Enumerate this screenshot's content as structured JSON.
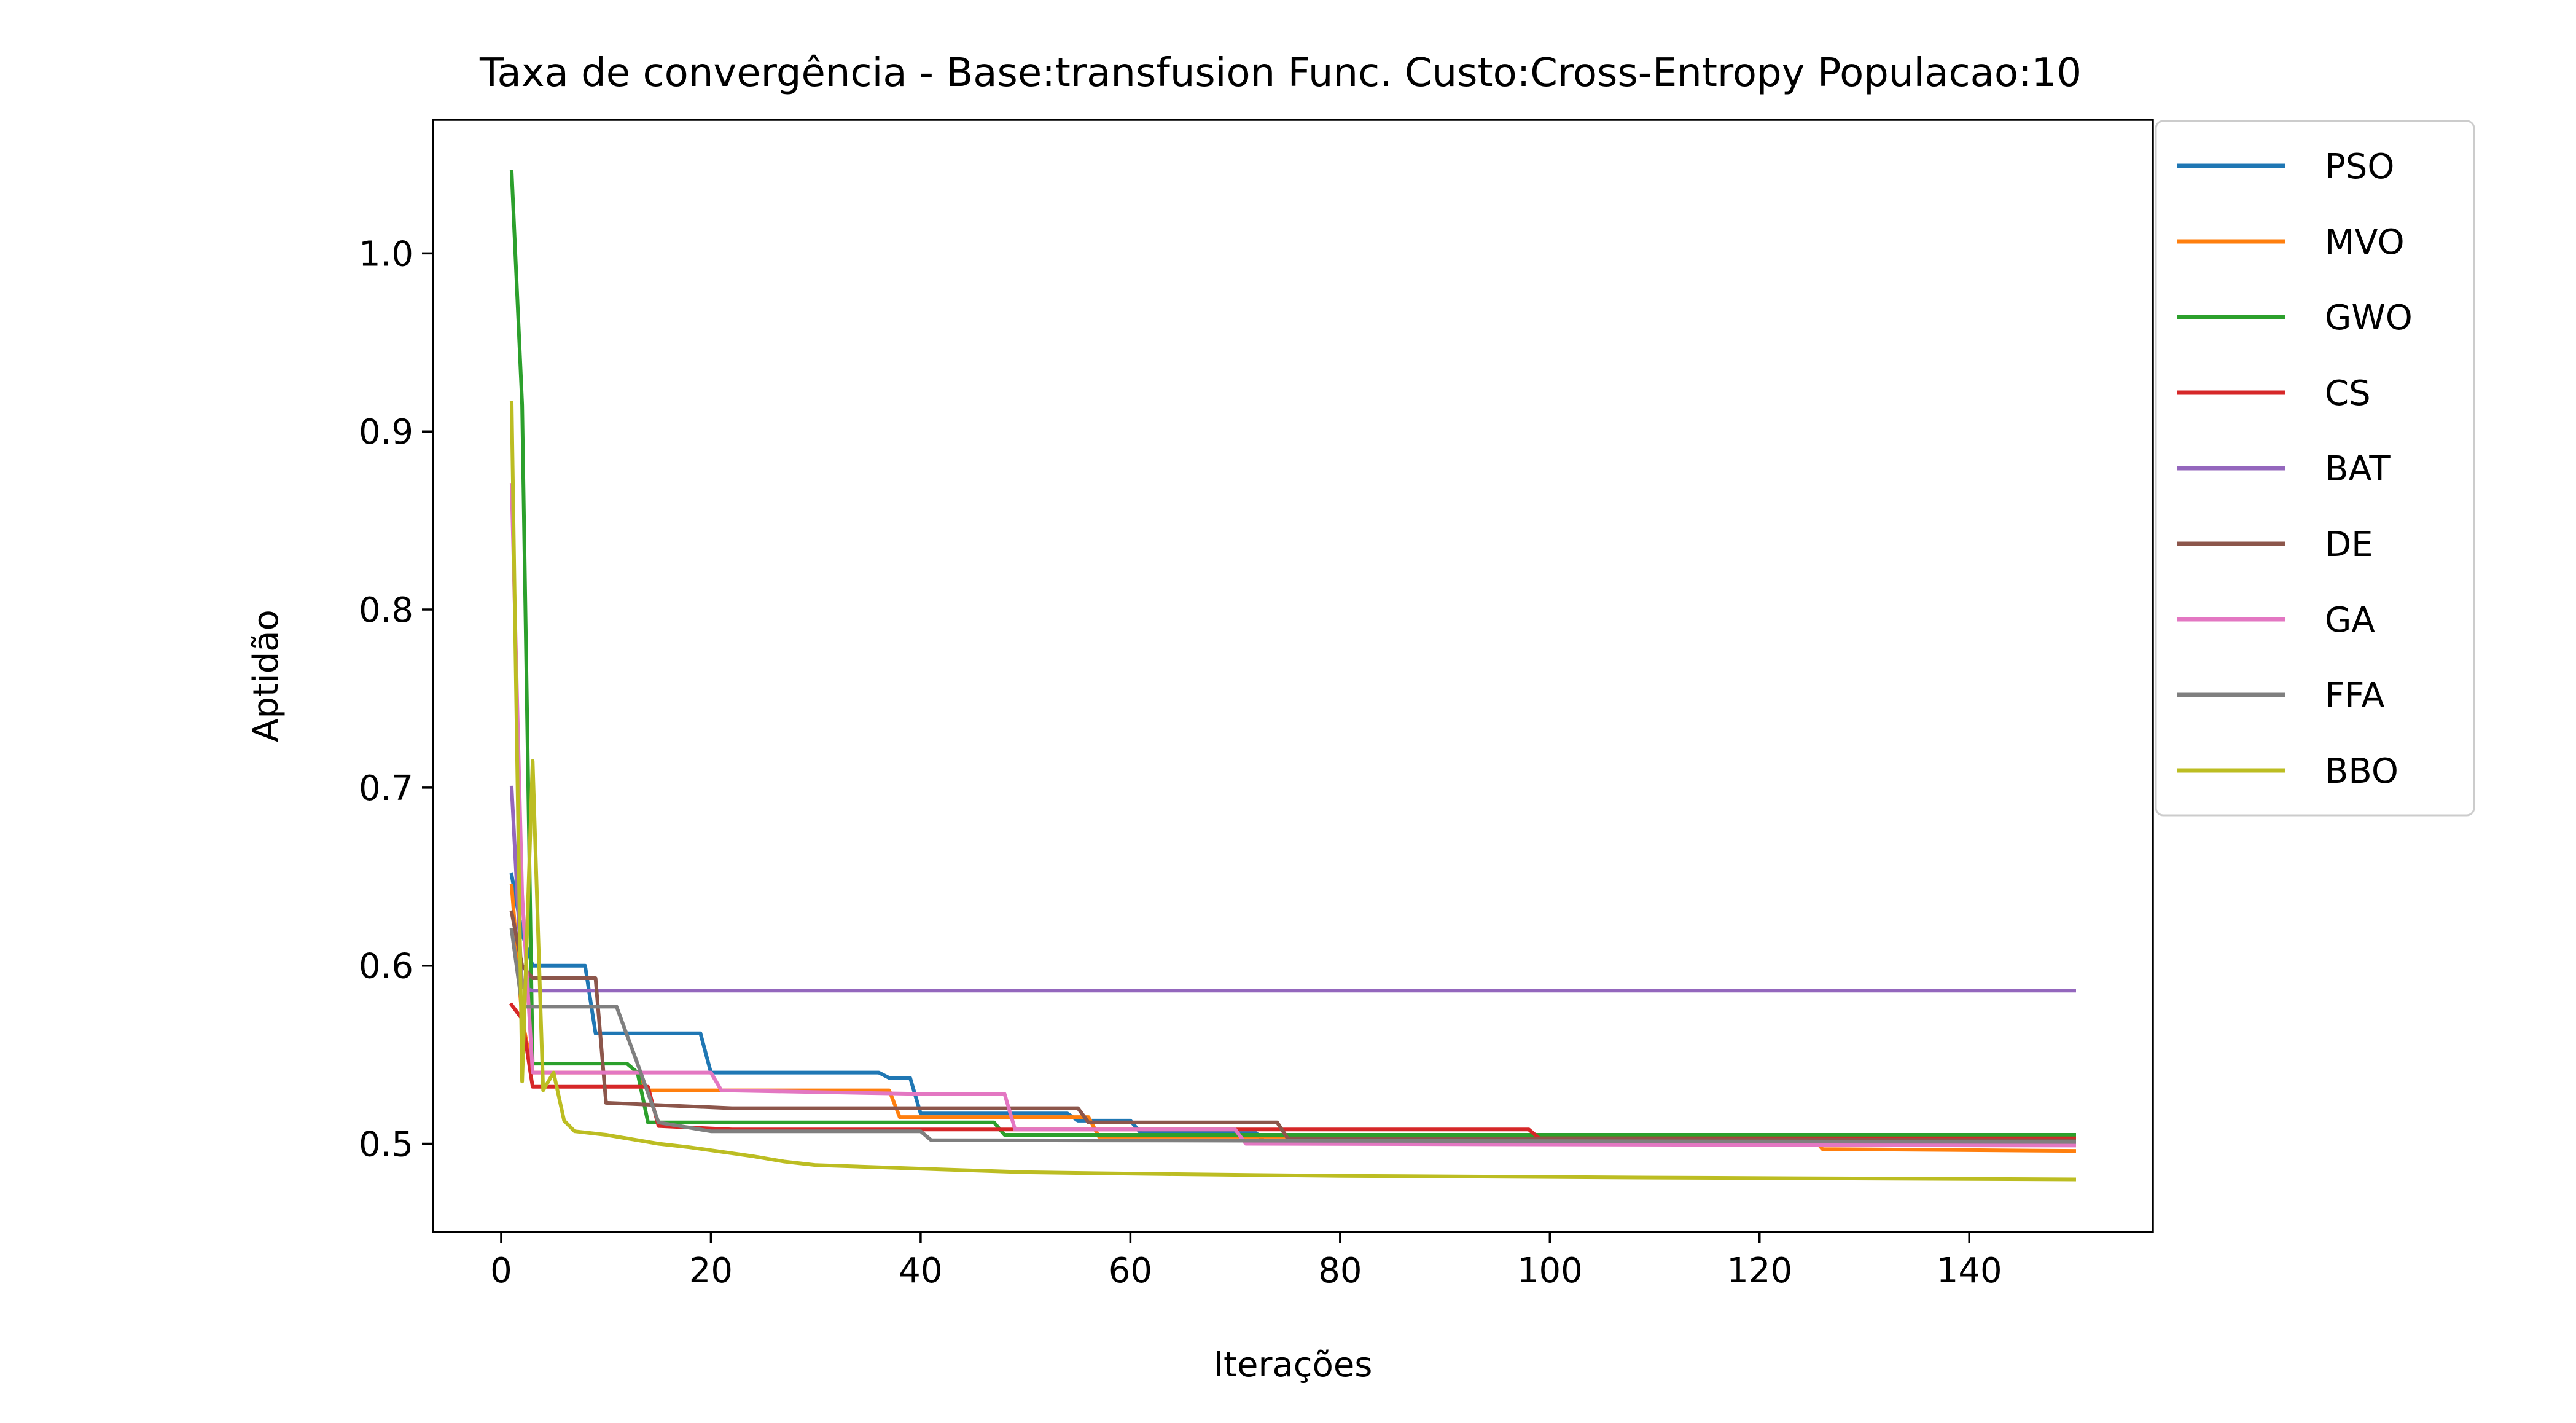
{
  "chart_data": {
    "type": "line",
    "title": "Taxa de convergência - Base:transfusion Func. Custo:Cross-Entropy Populacao:10",
    "xlabel": "Iterações",
    "ylabel": "Aptidão",
    "xlim": [
      -6.5,
      157.5
    ],
    "ylim": [
      0.4505,
      1.075
    ],
    "xticks": [
      0,
      20,
      40,
      60,
      80,
      100,
      120,
      140
    ],
    "yticks": [
      0.5,
      0.6,
      0.7,
      0.8,
      0.9,
      1.0
    ],
    "xtick_labels": [
      "0",
      "20",
      "40",
      "60",
      "80",
      "100",
      "120",
      "140"
    ],
    "ytick_labels": [
      "0.5",
      "0.6",
      "0.7",
      "0.8",
      "0.9",
      "1.0"
    ],
    "grid": false,
    "legend_position": "outside-right-top",
    "series": [
      {
        "name": "PSO",
        "color": "#1f77b4",
        "points": [
          [
            1,
            0.651
          ],
          [
            2,
            0.618
          ],
          [
            3,
            0.6
          ],
          [
            8,
            0.6
          ],
          [
            9,
            0.562
          ],
          [
            19,
            0.562
          ],
          [
            20,
            0.54
          ],
          [
            36,
            0.54
          ],
          [
            37,
            0.537
          ],
          [
            39,
            0.537
          ],
          [
            40,
            0.517
          ],
          [
            54,
            0.517
          ],
          [
            55,
            0.513
          ],
          [
            60,
            0.513
          ],
          [
            61,
            0.506
          ],
          [
            72,
            0.506
          ],
          [
            73,
            0.5
          ],
          [
            150,
            0.5
          ]
        ]
      },
      {
        "name": "MVO",
        "color": "#ff7f0e",
        "points": [
          [
            1,
            0.645
          ],
          [
            2,
            0.57
          ],
          [
            3,
            0.54
          ],
          [
            13,
            0.54
          ],
          [
            14,
            0.53
          ],
          [
            37,
            0.53
          ],
          [
            38,
            0.515
          ],
          [
            56,
            0.515
          ],
          [
            57,
            0.504
          ],
          [
            125,
            0.504
          ],
          [
            126,
            0.497
          ],
          [
            150,
            0.496
          ]
        ]
      },
      {
        "name": "GWO",
        "color": "#2ca02c",
        "points": [
          [
            1,
            1.046
          ],
          [
            2,
            0.915
          ],
          [
            3,
            0.545
          ],
          [
            12,
            0.545
          ],
          [
            13,
            0.54
          ],
          [
            14,
            0.512
          ],
          [
            47,
            0.512
          ],
          [
            48,
            0.505
          ],
          [
            150,
            0.505
          ]
        ]
      },
      {
        "name": "CS",
        "color": "#d62728",
        "points": [
          [
            1,
            0.578
          ],
          [
            2,
            0.57
          ],
          [
            3,
            0.532
          ],
          [
            14,
            0.532
          ],
          [
            15,
            0.51
          ],
          [
            22,
            0.508
          ],
          [
            98,
            0.508
          ],
          [
            99,
            0.503
          ],
          [
            150,
            0.503
          ]
        ]
      },
      {
        "name": "BAT",
        "color": "#9467bd",
        "points": [
          [
            1,
            0.7
          ],
          [
            2,
            0.588
          ],
          [
            3,
            0.586
          ],
          [
            150,
            0.586
          ]
        ]
      },
      {
        "name": "DE",
        "color": "#8c564b",
        "points": [
          [
            1,
            0.63
          ],
          [
            2,
            0.6
          ],
          [
            3,
            0.593
          ],
          [
            9,
            0.593
          ],
          [
            10,
            0.523
          ],
          [
            22,
            0.52
          ],
          [
            55,
            0.52
          ],
          [
            56,
            0.512
          ],
          [
            74,
            0.512
          ],
          [
            75,
            0.503
          ],
          [
            150,
            0.502
          ]
        ]
      },
      {
        "name": "GA",
        "color": "#e377c2",
        "points": [
          [
            1,
            0.87
          ],
          [
            2,
            0.64
          ],
          [
            3,
            0.54
          ],
          [
            20,
            0.54
          ],
          [
            21,
            0.53
          ],
          [
            40,
            0.528
          ],
          [
            48,
            0.528
          ],
          [
            49,
            0.508
          ],
          [
            70,
            0.508
          ],
          [
            71,
            0.5
          ],
          [
            150,
            0.499
          ]
        ]
      },
      {
        "name": "FFA",
        "color": "#7f7f7f",
        "points": [
          [
            1,
            0.62
          ],
          [
            2,
            0.577
          ],
          [
            11,
            0.577
          ],
          [
            13,
            0.545
          ],
          [
            15,
            0.512
          ],
          [
            20,
            0.507
          ],
          [
            40,
            0.507
          ],
          [
            41,
            0.502
          ],
          [
            150,
            0.501
          ]
        ]
      },
      {
        "name": "BBO",
        "color": "#bcbd22",
        "points": [
          [
            1,
            0.916
          ],
          [
            2,
            0.535
          ],
          [
            3,
            0.715
          ],
          [
            4,
            0.53
          ],
          [
            5,
            0.54
          ],
          [
            6,
            0.513
          ],
          [
            7,
            0.507
          ],
          [
            10,
            0.505
          ],
          [
            15,
            0.5
          ],
          [
            18,
            0.498
          ],
          [
            24,
            0.493
          ],
          [
            27,
            0.49
          ],
          [
            30,
            0.488
          ],
          [
            40,
            0.486
          ],
          [
            50,
            0.484
          ],
          [
            63,
            0.483
          ],
          [
            80,
            0.482
          ],
          [
            110,
            0.481
          ],
          [
            150,
            0.48
          ]
        ]
      }
    ]
  }
}
